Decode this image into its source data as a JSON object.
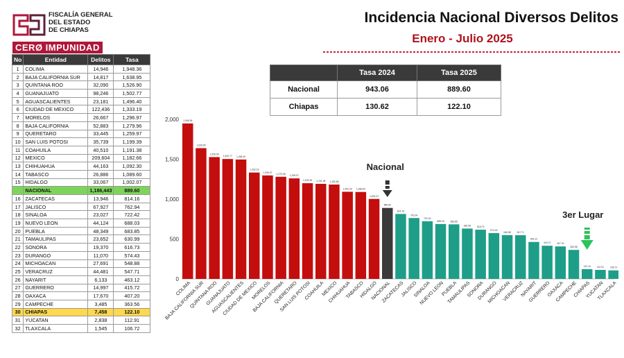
{
  "header": {
    "org_line1": "FISCALÍA GENERAL",
    "org_line2": "DEL ESTADO",
    "org_line3": "DE CHIAPAS",
    "tagline": "CERØ IMPUNIDAD",
    "title": "Incidencia Nacional Diversos Delitos",
    "subtitle": "Enero - Julio 2025"
  },
  "rank_table": {
    "headers": [
      "No",
      "Entidad",
      "Delitos",
      "Tasa"
    ],
    "rows": [
      {
        "no": "1",
        "entidad": "COLIMA",
        "delitos": "14,946",
        "tasa": "1,948.36"
      },
      {
        "no": "2",
        "entidad": "BAJA CALIFORNIA SUR",
        "delitos": "14,817",
        "tasa": "1,638.95"
      },
      {
        "no": "3",
        "entidad": "QUINTANA ROO",
        "delitos": "32,090",
        "tasa": "1,526.90"
      },
      {
        "no": "4",
        "entidad": "GUANAJUATO",
        "delitos": "98,246",
        "tasa": "1,502.77"
      },
      {
        "no": "5",
        "entidad": "AGUASCALIENTES",
        "delitos": "23,181",
        "tasa": "1,496.40"
      },
      {
        "no": "6",
        "entidad": "CIUDAD DE MEXICO",
        "delitos": "122,436",
        "tasa": "1,333.19"
      },
      {
        "no": "7",
        "entidad": "MORELOS",
        "delitos": "26,667",
        "tasa": "1,296.97"
      },
      {
        "no": "8",
        "entidad": "BAJA CALIFORNIA",
        "delitos": "52,883",
        "tasa": "1,279.96"
      },
      {
        "no": "9",
        "entidad": "QUERETARO",
        "delitos": "33,445",
        "tasa": "1,259.97"
      },
      {
        "no": "10",
        "entidad": "SAN LUIS POTOSI",
        "delitos": "35,739",
        "tasa": "1,199.39"
      },
      {
        "no": "11",
        "entidad": "COAHUILA",
        "delitos": "40,510",
        "tasa": "1,191.38"
      },
      {
        "no": "12",
        "entidad": "MEXICO",
        "delitos": "209,604",
        "tasa": "1,182.66"
      },
      {
        "no": "13",
        "entidad": "CHIHUAHUA",
        "delitos": "44,163",
        "tasa": "1,092.30"
      },
      {
        "no": "14",
        "entidad": "TABASCO",
        "delitos": "26,886",
        "tasa": "1,089.60"
      },
      {
        "no": "15",
        "entidad": "HIDALGO",
        "delitos": "33,067",
        "tasa": "1,002.07"
      },
      {
        "no": "",
        "entidad": "NACIONAL",
        "delitos": "1,186,443",
        "tasa": "889.60",
        "highlight": "green"
      },
      {
        "no": "16",
        "entidad": "ZACATECAS",
        "delitos": "13,946",
        "tasa": "814.16"
      },
      {
        "no": "17",
        "entidad": "JALISCO",
        "delitos": "67,927",
        "tasa": "762.94"
      },
      {
        "no": "18",
        "entidad": "SINALOA",
        "delitos": "23,027",
        "tasa": "722.42"
      },
      {
        "no": "19",
        "entidad": "NUEVO LEON",
        "delitos": "44,124",
        "tasa": "688.03"
      },
      {
        "no": "20",
        "entidad": "PUEBLA",
        "delitos": "48,349",
        "tasa": "683.85"
      },
      {
        "no": "21",
        "entidad": "TAMAULIPAS",
        "delitos": "23,652",
        "tasa": "630.99"
      },
      {
        "no": "22",
        "entidad": "SONORA",
        "delitos": "19,370",
        "tasa": "616.73"
      },
      {
        "no": "23",
        "entidad": "DURANGO",
        "delitos": "11,070",
        "tasa": "574.43"
      },
      {
        "no": "24",
        "entidad": "MICHOACAN",
        "delitos": "27,691",
        "tasa": "548.88"
      },
      {
        "no": "25",
        "entidad": "VERACRUZ",
        "delitos": "44,481",
        "tasa": "547.71"
      },
      {
        "no": "26",
        "entidad": "NAYARIT",
        "delitos": "6,133",
        "tasa": "463.12"
      },
      {
        "no": "27",
        "entidad": "GUERRERO",
        "delitos": "14,997",
        "tasa": "415.72"
      },
      {
        "no": "28",
        "entidad": "OAXACA",
        "delitos": "17,670",
        "tasa": "407.20"
      },
      {
        "no": "29",
        "entidad": "CAMPECHE",
        "delitos": "3,485",
        "tasa": "363.56"
      },
      {
        "no": "30",
        "entidad": "CHIAPAS",
        "delitos": "7,458",
        "tasa": "122.10",
        "highlight": "yellow"
      },
      {
        "no": "31",
        "entidad": "YUCATAN",
        "delitos": "2,838",
        "tasa": "112.91"
      },
      {
        "no": "32",
        "entidad": "TLAXCALA",
        "delitos": "1,545",
        "tasa": "106.72"
      }
    ]
  },
  "rate_table": {
    "headers": [
      "",
      "Tasa 2024",
      "Tasa 2025"
    ],
    "rows": [
      {
        "label": "Nacional",
        "v2024": "943.06",
        "v2025": "889.60"
      },
      {
        "label": "Chiapas",
        "v2024": "130.62",
        "v2025": "122.10"
      }
    ]
  },
  "chart_data": {
    "type": "bar",
    "categories": [
      "COLIMA",
      "BAJA CALIFORNIA SUR",
      "QUINTANA ROO",
      "GUANAJUATO",
      "AGUASCALIENTES",
      "CIUDAD DE MEXICO",
      "MORELOS",
      "BAJA CALIFORNIA",
      "QUERETARO",
      "SAN LUIS POTOSI",
      "COAHUILA",
      "MEXICO",
      "CHIHUAHUA",
      "TABASCO",
      "HIDALGO",
      "NACIONAL",
      "ZACATECAS",
      "JALISCO",
      "SINALOA",
      "NUEVO LEON",
      "PUEBLA",
      "TAMAULIPAS",
      "SONORA",
      "DURANGO",
      "MICHOACAN",
      "VERACRUZ",
      "NAYARIT",
      "GUERRERO",
      "OAXACA",
      "CAMPECHE",
      "CHIAPAS",
      "YUCATAN",
      "TLAXCALA"
    ],
    "values": [
      1948.36,
      1638.95,
      1526.9,
      1502.77,
      1496.4,
      1333.19,
      1296.97,
      1279.96,
      1259.97,
      1199.39,
      1191.38,
      1182.66,
      1092.3,
      1089.6,
      1002.07,
      889.6,
      814.16,
      762.94,
      722.42,
      688.03,
      683.85,
      630.99,
      616.73,
      574.43,
      548.88,
      547.71,
      463.12,
      415.72,
      407.2,
      363.56,
      122.1,
      112.91,
      106.72
    ],
    "value_labels": [
      "1,948.36",
      "1,638.95",
      "1,526.90",
      "1,502.77",
      "1,496.40",
      "1,333.19",
      "1,296.97",
      "1,279.96",
      "1,259.97",
      "1,199.39",
      "1,191.38",
      "1,182.66",
      "1,092.30",
      "1,089.60",
      "1,002.07",
      "889.60",
      "814.16",
      "762.94",
      "722.42",
      "688.03",
      "683.85",
      "630.99",
      "616.73",
      "574.43",
      "548.88",
      "547.71",
      "463.12",
      "415.72",
      "407.20",
      "363.56",
      "122.10",
      "112.91",
      "106.72"
    ],
    "yticks": [
      0,
      500,
      1000,
      1500,
      2000
    ],
    "ytick_labels": [
      "0",
      "500",
      "1,000",
      "1,500",
      "2,000"
    ],
    "ylim": [
      0,
      2000
    ],
    "colors": {
      "above": "#c40d0d",
      "national": "#3a3a3a",
      "below": "#1e9e88",
      "arrow_dark": "#333333",
      "arrow_green": "#2ec25a"
    },
    "annotations": {
      "nacional": "Nacional",
      "third_place": "3er Lugar"
    },
    "grid": false
  }
}
